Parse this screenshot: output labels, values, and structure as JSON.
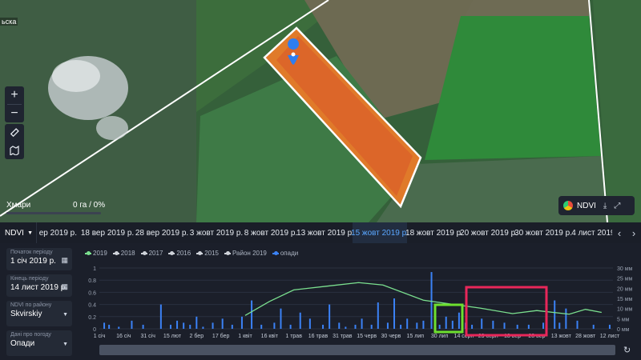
{
  "map": {
    "clouds_label": "Хмари",
    "clouds_value": "0 га / 0%",
    "top_left_label": "ьска",
    "ndvi_label": "NDVI",
    "controls": [
      "zoom-in",
      "zoom-out",
      "ruler",
      "map-layers"
    ],
    "zoom_in": "+",
    "zoom_out": "−"
  },
  "datebar": {
    "index_label": "NDVI",
    "dates": [
      "ер 2019 р.",
      "18 вер 2019 р.",
      "28 вер 2019 р.",
      "3 жовт 2019 р.",
      "8 жовт 2019 р.",
      "13 жовт 2019 р.",
      "15 жовт 2019 р.",
      "18 жовт 2019 р.",
      "20 жовт 2019 р.",
      "30 жовт 2019 р.",
      "4 лист 2019 р."
    ],
    "active_index": 6
  },
  "sidebar": {
    "start_label": "Початок періоду",
    "start_value": "1 січ 2019 р.",
    "end_label": "Кінець періоду",
    "end_value": "14 лист 2019 р.",
    "district_label": "NDVI по району",
    "district_value": "Skvirskiy",
    "weather_label": "Дані про погоду",
    "weather_value": "Опади"
  },
  "legend": [
    {
      "name": "2019",
      "color": "#7be08f"
    },
    {
      "name": "2018",
      "color": "#cfd3da"
    },
    {
      "name": "2017",
      "color": "#cfd3da"
    },
    {
      "name": "2016",
      "color": "#cfd3da"
    },
    {
      "name": "2015",
      "color": "#cfd3da"
    },
    {
      "name": "Район 2019",
      "color": "#cfd3da"
    },
    {
      "name": "опади",
      "color": "#3b82f6"
    }
  ],
  "chart_data": {
    "type": "line",
    "x_ticks": [
      "1 січ",
      "16 січ",
      "31 січ",
      "15 лют",
      "2 бер",
      "17 бер",
      "1 квіт",
      "16 квіт",
      "1 трав",
      "16 трав",
      "31 трав",
      "15 черв",
      "30 черв",
      "15 лип",
      "30 лип",
      "14 серп",
      "29 серп",
      "13 вер",
      "28 вер",
      "13 жовт",
      "28 жовт",
      "12 лист"
    ],
    "y_left_ticks": [
      "0",
      "0.2",
      "0.4",
      "0.6",
      "0.8",
      "1"
    ],
    "y_left_lim": [
      0,
      1
    ],
    "y_right_ticks": [
      "0 мм",
      "5 мм",
      "10 мм",
      "15 мм",
      "20 мм",
      "25 мм",
      "30 мм"
    ],
    "y_right_lim": [
      0,
      30
    ],
    "ndvi_2019": {
      "name": "2019",
      "x_day": [
        90,
        105,
        120,
        140,
        160,
        175,
        200,
        235,
        255,
        270,
        290,
        300,
        310
      ],
      "values": [
        0.22,
        0.45,
        0.64,
        0.7,
        0.76,
        0.72,
        0.47,
        0.34,
        0.25,
        0.3,
        0.24,
        0.32,
        0.27
      ]
    },
    "precip_mm": {
      "name": "опади",
      "x_day": [
        3,
        6,
        12,
        20,
        27,
        38,
        44,
        48,
        52,
        56,
        60,
        64,
        70,
        76,
        82,
        88,
        94,
        100,
        108,
        112,
        118,
        124,
        130,
        138,
        142,
        148,
        152,
        158,
        162,
        168,
        172,
        178,
        182,
        186,
        190,
        196,
        200,
        205,
        210,
        214,
        218,
        222,
        226,
        230,
        236,
        243,
        250,
        258,
        265,
        274,
        281,
        284,
        288,
        295,
        305,
        315
      ],
      "values": [
        3,
        2,
        1,
        4,
        2,
        12,
        2,
        4,
        3,
        2,
        6,
        1,
        3,
        5,
        2,
        6,
        14,
        2,
        3,
        10,
        2,
        8,
        5,
        2,
        12,
        3,
        1,
        2,
        5,
        2,
        13,
        3,
        15,
        2,
        5,
        3,
        4,
        28,
        2,
        6,
        4,
        8,
        3,
        2,
        5,
        4,
        3,
        2,
        2,
        3,
        14,
        3,
        10,
        4,
        2,
        2
      ]
    }
  }
}
